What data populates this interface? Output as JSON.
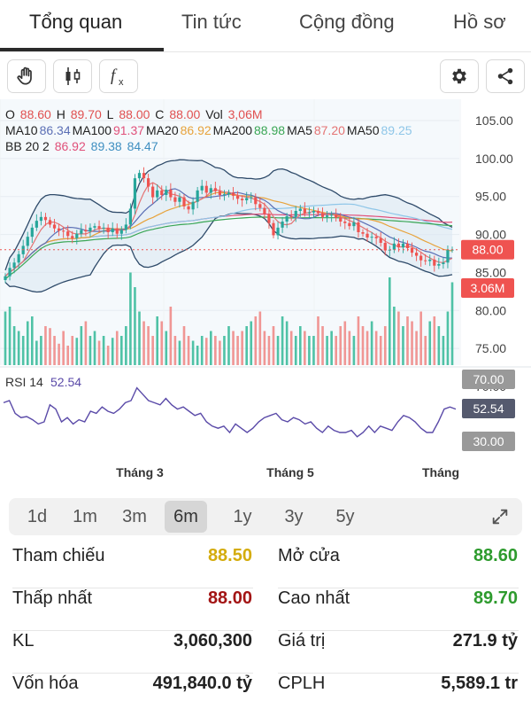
{
  "tabs": [
    {
      "label": "Tổng quan",
      "active": true
    },
    {
      "label": "Tin tức"
    },
    {
      "label": "Cộng đồng"
    },
    {
      "label": "Hồ sơ"
    }
  ],
  "toolbar": {
    "left_icons": [
      "hand-icon",
      "candlestick-icon",
      "function-icon"
    ],
    "right_icons": [
      "settings-icon",
      "share-icon"
    ]
  },
  "legend": {
    "ohlc": {
      "o_label": "O",
      "o": "88.60",
      "h_label": "H",
      "h": "89.70",
      "l_label": "L",
      "l": "88.00",
      "c_label": "C",
      "c": "88.00",
      "vol_label": "Vol",
      "vol": "3,06M"
    },
    "ma_row": [
      {
        "label": "MA10",
        "value": "86.34",
        "color": "#5b6fb5"
      },
      {
        "label": "MA100",
        "value": "91.37",
        "color": "#e0507a"
      },
      {
        "label": "MA20",
        "value": "86.92",
        "color": "#e7a33c"
      },
      {
        "label": "MA200",
        "value": "88.98",
        "color": "#3aa655"
      },
      {
        "label": "MA5",
        "value": "87.20",
        "color": "#e47474"
      },
      {
        "label": "MA50",
        "value": "89.25",
        "color": "#8ec6e8"
      }
    ],
    "bb": {
      "label": "BB 20 2",
      "v1": "86.92",
      "v2": "89.38",
      "v3": "84.47",
      "c1": "#e0507a",
      "c2": "#3f8fc1",
      "c3": "#3f8fc1"
    }
  },
  "chart_data": {
    "type": "candlestick",
    "price_axis": {
      "ticks": [
        "105.00",
        "100.00",
        "95.00",
        "90.00",
        "85.00",
        "80.00",
        "75.00",
        "70.00"
      ],
      "range": [
        70,
        105
      ]
    },
    "last_price_label": "88.00",
    "last_volume_label": "3.06M",
    "rsi": {
      "label": "RSI 14",
      "value": "52.54",
      "levels": [
        "70.00",
        "30.00"
      ]
    },
    "x_labels": [
      "Tháng 3",
      "Tháng 5",
      "Tháng"
    ],
    "up_color": "#26a69a",
    "down_color": "#ef5350",
    "close": [
      84.5,
      85.6,
      86.3,
      87.4,
      88.5,
      89.7,
      90.9,
      91.8,
      92.3,
      91.9,
      91.3,
      90.8,
      90.5,
      90.4,
      89.8,
      89.5,
      90.1,
      90.6,
      90.4,
      90.9,
      91.1,
      90.8,
      90.9,
      90.3,
      90.8,
      90.1,
      90.6,
      91.3,
      93.4,
      97.4,
      98.1,
      97.4,
      96.3,
      94.9,
      95.8,
      95.2,
      95.9,
      94.9,
      94.3,
      94.9,
      93.7,
      93.3,
      94.3,
      95.8,
      96.4,
      95.5,
      96.1,
      95.7,
      95.2,
      95.3,
      95.5,
      95.1,
      94.7,
      94.5,
      94.8,
      94.9,
      94.0,
      93.5,
      92.7,
      91.5,
      89.9,
      90.9,
      91.7,
      92.4,
      92.3,
      93.1,
      93.4,
      92.8,
      92.9,
      93.1,
      92.8,
      92.3,
      92.5,
      92.6,
      92.2,
      91.7,
      91.5,
      91.1,
      91.6,
      90.3,
      90.1,
      89.6,
      89.7,
      89.5,
      88.9,
      87.9,
      88.0,
      88.8,
      88.3,
      88.8,
      88.2,
      87.6,
      87.2,
      86.6,
      86.5,
      86.7,
      85.9,
      86.1,
      86.3,
      88.0,
      88.0
    ],
    "volume_relative": [
      0.55,
      0.6,
      0.4,
      0.35,
      0.3,
      0.45,
      0.5,
      0.25,
      0.3,
      0.4,
      0.38,
      0.3,
      0.22,
      0.35,
      0.2,
      0.3,
      0.28,
      0.4,
      0.45,
      0.3,
      0.35,
      0.25,
      0.3,
      0.2,
      0.28,
      0.35,
      0.3,
      0.4,
      0.95,
      0.8,
      0.55,
      0.45,
      0.4,
      0.3,
      0.5,
      0.45,
      0.35,
      0.6,
      0.3,
      0.25,
      0.4,
      0.3,
      0.25,
      0.2,
      0.3,
      0.28,
      0.35,
      0.3,
      0.25,
      0.3,
      0.4,
      0.35,
      0.3,
      0.35,
      0.4,
      0.45,
      0.5,
      0.55,
      0.35,
      0.3,
      0.4,
      0.3,
      0.5,
      0.45,
      0.35,
      0.3,
      0.4,
      0.35,
      0.3,
      0.3,
      0.5,
      0.4,
      0.3,
      0.35,
      0.3,
      0.4,
      0.45,
      0.35,
      0.3,
      0.5,
      0.4,
      0.35,
      0.45,
      0.35,
      0.3,
      0.4,
      0.9,
      0.6,
      0.55,
      0.4,
      0.5,
      0.45,
      0.35,
      0.55,
      0.3,
      0.45,
      0.5,
      0.4,
      0.3,
      0.55,
      0.85
    ],
    "rsi_values": [
      58,
      60,
      48,
      44,
      45,
      42,
      38,
      40,
      56,
      52,
      40,
      44,
      38,
      42,
      40,
      50,
      48,
      54,
      50,
      48,
      52,
      58,
      60,
      72,
      66,
      60,
      58,
      56,
      62,
      56,
      52,
      54,
      50,
      46,
      48,
      40,
      36,
      34,
      36,
      30,
      38,
      34,
      30,
      34,
      40,
      44,
      46,
      48,
      42,
      40,
      44,
      42,
      38,
      40,
      34,
      30,
      36,
      32,
      30,
      30,
      32,
      26,
      30,
      36,
      30,
      36,
      34,
      32,
      40,
      46,
      44,
      40,
      34,
      30,
      30,
      40,
      52,
      54,
      52
    ]
  },
  "ranges": {
    "items": [
      "1d",
      "1m",
      "3m",
      "6m",
      "1y",
      "3y",
      "5y"
    ],
    "active": "6m",
    "expand_icon": "expand-icon"
  },
  "stats": {
    "left": [
      {
        "label": "Tham chiếu",
        "value": "88.50",
        "color": "#d4ac0d"
      },
      {
        "label": "Thấp nhất",
        "value": "88.00",
        "color": "#a31515"
      },
      {
        "label": "KL",
        "value": "3,060,300",
        "color": "#222222"
      },
      {
        "label": "Vốn hóa",
        "value": "491,840.0 tỷ",
        "color": "#222222"
      }
    ],
    "right": [
      {
        "label": "Mở cửa",
        "value": "88.60",
        "color": "#2e9b2e"
      },
      {
        "label": "Cao nhất",
        "value": "89.70",
        "color": "#2e9b2e"
      },
      {
        "label": "Giá trị",
        "value": "271.9 tỷ",
        "color": "#222222"
      },
      {
        "label": "CPLH",
        "value": "5,589.1 tr",
        "color": "#222222"
      }
    ]
  }
}
